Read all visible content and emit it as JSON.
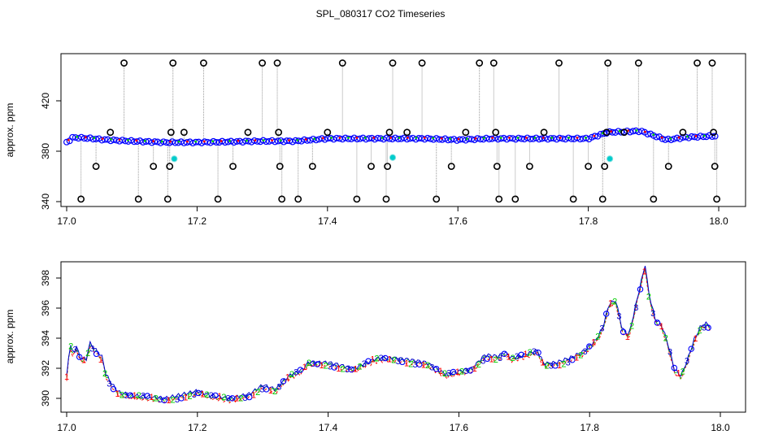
{
  "title": "SPL_080317  CO2 Timeseries",
  "colors": {
    "primary": "#0000ff",
    "fill": "#00cccc",
    "outlier": "#000000",
    "line": "#999999",
    "series1": "#ff0000",
    "series2": "#00cc00",
    "series3": "#0000cc"
  },
  "chart_data": [
    {
      "type": "scatter",
      "title": "SPL_080317  CO2 Timeseries",
      "xlabel": "",
      "ylabel": "approx. ppm",
      "xlim": [
        17.0,
        18.0
      ],
      "ylim": [
        335,
        460
      ],
      "xticks": [
        17.0,
        17.2,
        17.4,
        17.6,
        17.8,
        18.0
      ],
      "xtick_labels": [
        "17.0",
        "17.2",
        "17.4",
        "17.6",
        "17.8",
        "18.0"
      ],
      "yticks": [
        340,
        380,
        420
      ],
      "ytick_labels": [
        "340",
        "380",
        "420"
      ],
      "baseline": [
        [
          17.0,
          387
        ],
        [
          17.01,
          391
        ],
        [
          17.04,
          390
        ],
        [
          17.06,
          389
        ],
        [
          17.1,
          388
        ],
        [
          17.15,
          387
        ],
        [
          17.2,
          387
        ],
        [
          17.3,
          388
        ],
        [
          17.35,
          388
        ],
        [
          17.4,
          390
        ],
        [
          17.5,
          390
        ],
        [
          17.55,
          390
        ],
        [
          17.6,
          389
        ],
        [
          17.65,
          390
        ],
        [
          17.7,
          390
        ],
        [
          17.75,
          390
        ],
        [
          17.8,
          390
        ],
        [
          17.83,
          395
        ],
        [
          17.88,
          396
        ],
        [
          17.92,
          389
        ],
        [
          17.95,
          391
        ],
        [
          17.99,
          392
        ]
      ],
      "cyan_points": [
        [
          17.165,
          374
        ],
        [
          17.5,
          375
        ],
        [
          17.833,
          374
        ]
      ],
      "outliers": [
        [
          17.022,
          342
        ],
        [
          17.045,
          368
        ],
        [
          17.067,
          395
        ],
        [
          17.088,
          450
        ],
        [
          17.11,
          342
        ],
        [
          17.133,
          368
        ],
        [
          17.155,
          342
        ],
        [
          17.158,
          368
        ],
        [
          17.16,
          395
        ],
        [
          17.163,
          450
        ],
        [
          17.18,
          395
        ],
        [
          17.21,
          450
        ],
        [
          17.232,
          342
        ],
        [
          17.255,
          368
        ],
        [
          17.278,
          395
        ],
        [
          17.3,
          450
        ],
        [
          17.323,
          450
        ],
        [
          17.325,
          395
        ],
        [
          17.327,
          368
        ],
        [
          17.33,
          342
        ],
        [
          17.355,
          342
        ],
        [
          17.377,
          368
        ],
        [
          17.4,
          395
        ],
        [
          17.423,
          450
        ],
        [
          17.445,
          342
        ],
        [
          17.467,
          368
        ],
        [
          17.49,
          342
        ],
        [
          17.492,
          368
        ],
        [
          17.495,
          395
        ],
        [
          17.5,
          450
        ],
        [
          17.522,
          395
        ],
        [
          17.545,
          450
        ],
        [
          17.567,
          342
        ],
        [
          17.59,
          368
        ],
        [
          17.612,
          395
        ],
        [
          17.633,
          450
        ],
        [
          17.655,
          450
        ],
        [
          17.658,
          395
        ],
        [
          17.66,
          368
        ],
        [
          17.663,
          342
        ],
        [
          17.688,
          342
        ],
        [
          17.71,
          368
        ],
        [
          17.732,
          395
        ],
        [
          17.755,
          450
        ],
        [
          17.777,
          342
        ],
        [
          17.8,
          368
        ],
        [
          17.822,
          342
        ],
        [
          17.825,
          368
        ],
        [
          17.828,
          395
        ],
        [
          17.83,
          450
        ],
        [
          17.855,
          395
        ],
        [
          17.877,
          450
        ],
        [
          17.9,
          342
        ],
        [
          17.923,
          368
        ],
        [
          17.945,
          395
        ],
        [
          17.967,
          450
        ],
        [
          17.99,
          450
        ],
        [
          17.992,
          395
        ],
        [
          17.994,
          368
        ],
        [
          17.997,
          342
        ]
      ]
    },
    {
      "type": "line",
      "title": "",
      "xlabel": "",
      "ylabel": "approx. ppm",
      "xlim": [
        17.0,
        18.0
      ],
      "ylim": [
        389.4,
        399.1
      ],
      "xticks": [
        17.0,
        17.2,
        17.4,
        17.6,
        17.8,
        18.0
      ],
      "xtick_labels": [
        "17.0",
        "17.2",
        "17.4",
        "17.6",
        "17.8",
        "18.0"
      ],
      "yticks": [
        390,
        392,
        394,
        396,
        398
      ],
      "ytick_labels": [
        "390",
        "392",
        "394",
        "396",
        "398"
      ],
      "series_markers": [
        "1",
        "2",
        "3",
        "o"
      ],
      "series_names": [
        "1",
        "2",
        "3"
      ],
      "trace": [
        [
          17.0,
          391.3
        ],
        [
          17.005,
          393.6
        ],
        [
          17.01,
          392.8
        ],
        [
          17.015,
          393.4
        ],
        [
          17.02,
          392.6
        ],
        [
          17.03,
          392.5
        ],
        [
          17.035,
          393.6
        ],
        [
          17.045,
          393.1
        ],
        [
          17.055,
          392.6
        ],
        [
          17.06,
          391.5
        ],
        [
          17.07,
          390.8
        ],
        [
          17.08,
          390.3
        ],
        [
          17.1,
          390.1
        ],
        [
          17.13,
          390.0
        ],
        [
          17.15,
          389.9
        ],
        [
          17.16,
          390.0
        ],
        [
          17.18,
          390.2
        ],
        [
          17.2,
          390.4
        ],
        [
          17.22,
          390.1
        ],
        [
          17.25,
          389.9
        ],
        [
          17.27,
          390.1
        ],
        [
          17.28,
          390.2
        ],
        [
          17.3,
          390.8
        ],
        [
          17.32,
          390.5
        ],
        [
          17.33,
          391.0
        ],
        [
          17.34,
          391.4
        ],
        [
          17.35,
          391.6
        ],
        [
          17.36,
          391.8
        ],
        [
          17.37,
          392.3
        ],
        [
          17.4,
          392.3
        ],
        [
          17.44,
          391.9
        ],
        [
          17.47,
          392.5
        ],
        [
          17.48,
          392.6
        ],
        [
          17.5,
          392.6
        ],
        [
          17.52,
          392.5
        ],
        [
          17.55,
          392.3
        ],
        [
          17.58,
          391.5
        ],
        [
          17.6,
          391.7
        ],
        [
          17.62,
          391.9
        ],
        [
          17.64,
          392.8
        ],
        [
          17.66,
          392.7
        ],
        [
          17.67,
          393.0
        ],
        [
          17.68,
          392.6
        ],
        [
          17.7,
          392.8
        ],
        [
          17.72,
          393.1
        ],
        [
          17.73,
          392.2
        ],
        [
          17.75,
          392.3
        ],
        [
          17.77,
          392.6
        ],
        [
          17.79,
          393.0
        ],
        [
          17.8,
          393.4
        ],
        [
          17.81,
          393.8
        ],
        [
          17.82,
          394.6
        ],
        [
          17.83,
          396.2
        ],
        [
          17.84,
          396.4
        ],
        [
          17.85,
          394.5
        ],
        [
          17.86,
          394.1
        ],
        [
          17.87,
          396.0
        ],
        [
          17.885,
          398.8
        ],
        [
          17.89,
          397.0
        ],
        [
          17.9,
          395.2
        ],
        [
          17.91,
          394.8
        ],
        [
          17.92,
          393.5
        ],
        [
          17.93,
          391.8
        ],
        [
          17.94,
          391.4
        ],
        [
          17.95,
          392.5
        ],
        [
          17.96,
          393.8
        ],
        [
          17.97,
          394.7
        ],
        [
          17.98,
          394.9
        ],
        [
          17.985,
          394.6
        ]
      ]
    }
  ]
}
